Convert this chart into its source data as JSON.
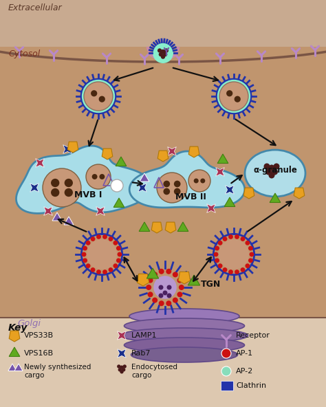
{
  "bg_extracellular": "#c8aa90",
  "bg_cytosol": "#c0956e",
  "bg_legend": "#ddc8b0",
  "cell_membrane_color": "#7a5545",
  "extracellular_text": "Extracellular",
  "cytosol_text": "Cytosol",
  "golgi_text": "Golgi",
  "key_text": "Key",
  "mvb1_text": "MVB I",
  "mvb2_text": "MVB II",
  "alpha_granule_text": "α-granule",
  "tgn_text": "TGN",
  "clathrin_color": "#2233aa",
  "clathrin_inner_ring": "#88eecc",
  "vesicle_lumen_color": "#c89878",
  "mvb_bg_color": "#a8dde8",
  "mvb_outline_color": "#4488aa",
  "alpha_granule_bg": "#b0dde8",
  "lamp1_color": "#aa3355",
  "rab7_color": "#1a2f8a",
  "vps33b_color": "#e8a020",
  "vps16b_color": "#60aa20",
  "ap1_color": "#cc1111",
  "ap2_color": "#88ddbb",
  "receptor_color": "#b888c8",
  "newly_synth_color": "#7755aa",
  "endocytosed_color": "#4a1a1a",
  "golgi_color": "#9070b0",
  "golgi_dark": "#604888",
  "intraluminal_color": "#4a2810",
  "arrow_color": "#111111",
  "pit_membrane_color": "#c888a8"
}
